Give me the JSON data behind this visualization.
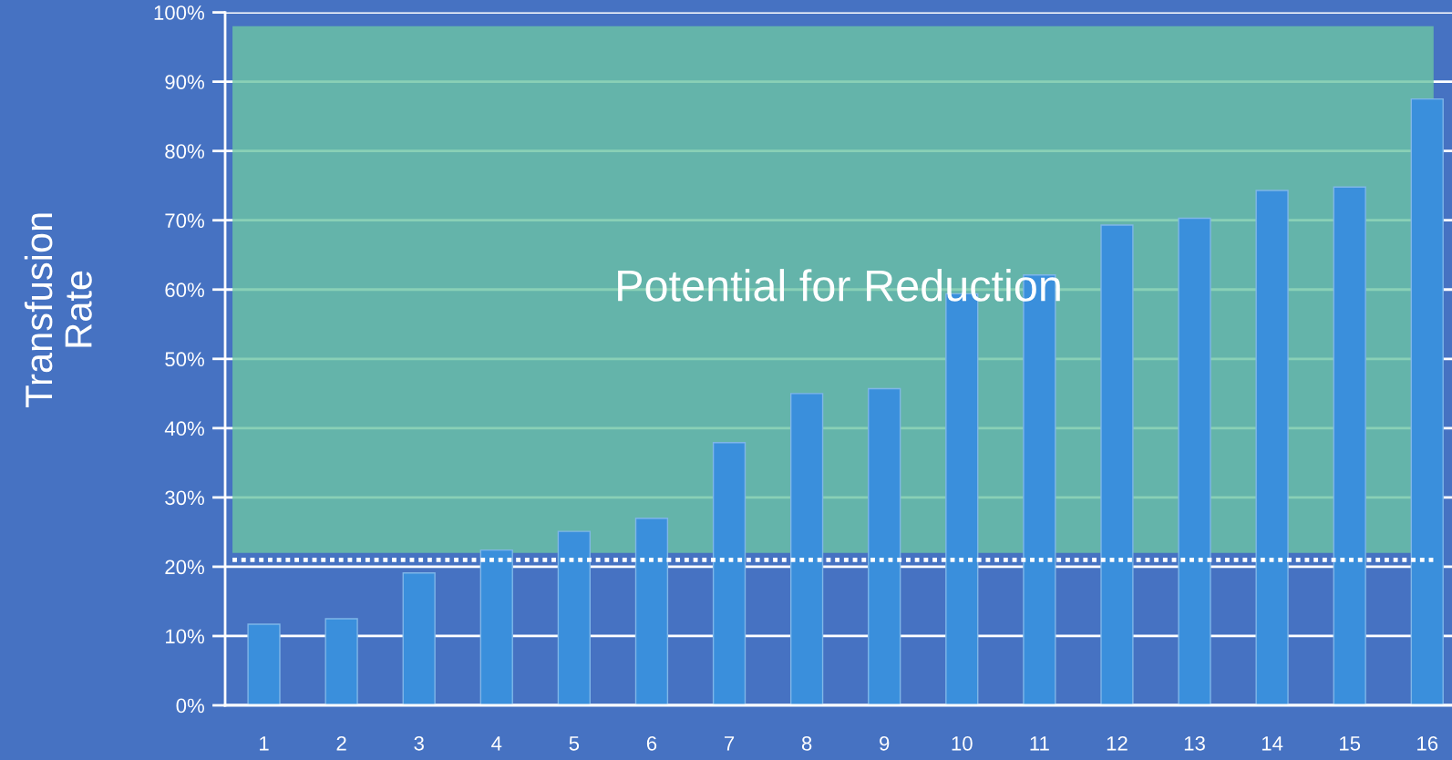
{
  "chart_data": {
    "type": "bar",
    "ylabel": "Transfusion\nRate",
    "categories": [
      "1",
      "2",
      "3",
      "4",
      "5",
      "6",
      "7",
      "8",
      "9",
      "10",
      "11",
      "12",
      "13",
      "14",
      "15",
      "16"
    ],
    "values": [
      11.7,
      12.5,
      19.1,
      22.4,
      25.1,
      27.0,
      37.9,
      45.0,
      45.7,
      59.4,
      62.1,
      69.3,
      70.3,
      74.3,
      74.8,
      87.5
    ],
    "color": "#3a8fdc",
    "ylim": [
      0,
      100
    ],
    "yticks": [
      {
        "value": 0,
        "label": "0%"
      },
      {
        "value": 10,
        "label": "10%"
      },
      {
        "value": 20,
        "label": "20%"
      },
      {
        "value": 30,
        "label": "30%"
      },
      {
        "value": 40,
        "label": "40%"
      },
      {
        "value": 50,
        "label": "50%"
      },
      {
        "value": 60,
        "label": "60%"
      },
      {
        "value": 70,
        "label": "70%"
      },
      {
        "value": 80,
        "label": "80%"
      },
      {
        "value": 90,
        "label": "90%"
      },
      {
        "value": 100,
        "label": "100%"
      }
    ],
    "grid": "y",
    "ref_lines": [
      {
        "axis": "y",
        "value": 21,
        "line_style": "dotted",
        "color": "#ffffff"
      }
    ],
    "bands": [
      {
        "axis": "y",
        "from": 22,
        "to": 98,
        "label": "Potential for Reduction",
        "color": "#6cc4a4"
      }
    ]
  }
}
